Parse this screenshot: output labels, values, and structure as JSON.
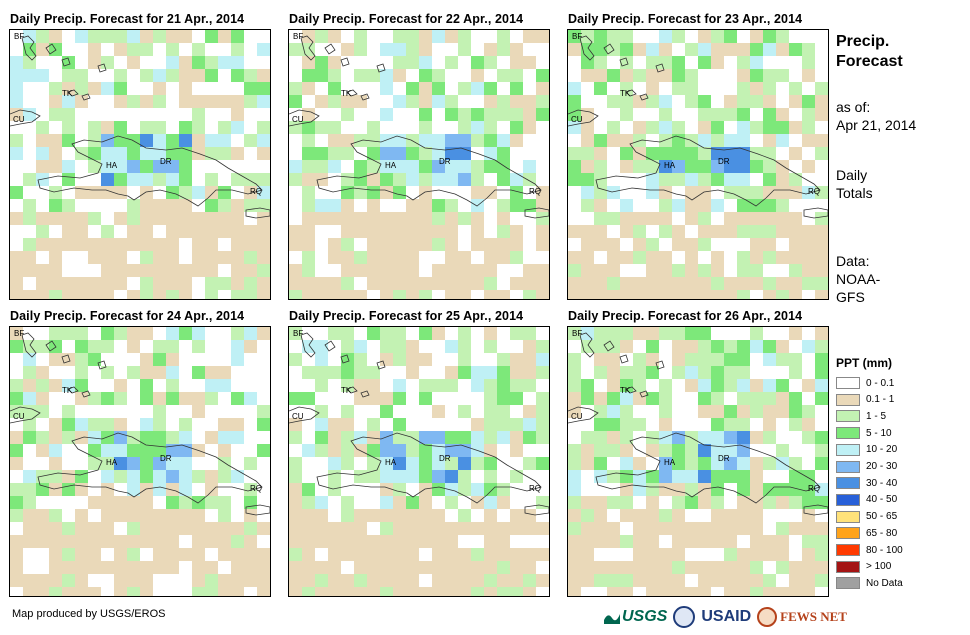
{
  "panels": [
    {
      "title": "Daily Precip. Forecast for 21 Apr., 2014",
      "variant": 0
    },
    {
      "title": "Daily Precip. Forecast for 22 Apr., 2014",
      "variant": 1
    },
    {
      "title": "Daily Precip. Forecast for 23 Apr., 2014",
      "variant": 2
    },
    {
      "title": "Daily Precip. Forecast for 24 Apr., 2014",
      "variant": 3
    },
    {
      "title": "Daily Precip. Forecast for 25 Apr., 2014",
      "variant": 4
    },
    {
      "title": "Daily Precip. Forecast for 26 Apr., 2014",
      "variant": 5
    }
  ],
  "map_labels": {
    "bf": "BF",
    "cu": "CU",
    "tk": "TK",
    "ha": "HA",
    "dr": "DR",
    "rq": "RQ"
  },
  "side": {
    "title_line1": "Precip.",
    "title_line2": "Forecast",
    "asof_line1": "as of:",
    "asof_line2": "Apr 21, 2014",
    "totals_line1": "Daily",
    "totals_line2": "Totals",
    "data_line1": "Data:",
    "data_line2": "NOAA-",
    "data_line3": "GFS"
  },
  "legend": {
    "title": "PPT (mm)",
    "items": [
      {
        "label": "0 - 0.1",
        "color": "#ffffff"
      },
      {
        "label": "0.1 - 1",
        "color": "#ead9b9"
      },
      {
        "label": "1 - 5",
        "color": "#c3f2b3"
      },
      {
        "label": "5 - 10",
        "color": "#7de87a"
      },
      {
        "label": "10 - 20",
        "color": "#bff0f5"
      },
      {
        "label": "20 - 30",
        "color": "#7fb8f2"
      },
      {
        "label": "30 - 40",
        "color": "#4a90e2"
      },
      {
        "label": "40 - 50",
        "color": "#2860d8"
      },
      {
        "label": "50 - 65",
        "color": "#ffe27a"
      },
      {
        "label": "65 - 80",
        "color": "#ffa31a"
      },
      {
        "label": "80 - 100",
        "color": "#ff3a00"
      },
      {
        "label": "> 100",
        "color": "#a41414"
      },
      {
        "label": "No Data",
        "color": "#a0a0a0"
      }
    ]
  },
  "footer": "Map produced by USGS/EROS",
  "logos": {
    "usgs": "USGS",
    "usaid": "USAID",
    "fews": "FEWS NET"
  }
}
